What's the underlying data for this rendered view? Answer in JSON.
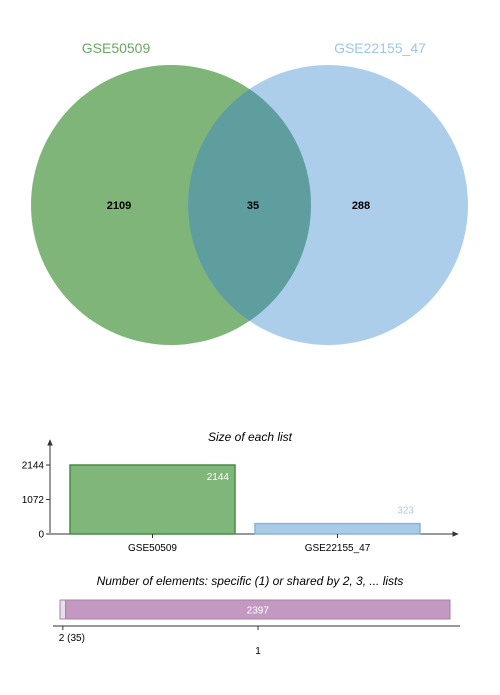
{
  "chart_data": [
    {
      "type": "venn",
      "sets": [
        {
          "name": "GSE50509",
          "color": "#6aa863"
        },
        {
          "name": "GSE22155_47",
          "color": "#9fc5e8"
        }
      ],
      "regions": {
        "only_GSE50509": "2109",
        "shared": "35",
        "only_GSE22155_47": "288"
      },
      "overlap_color": "#5f9e9f"
    },
    {
      "type": "bar",
      "title": "Size of each list",
      "categories": [
        "GSE50509",
        "GSE22155_47"
      ],
      "values": [
        2144,
        323
      ],
      "value_labels": [
        "2144",
        "323"
      ],
      "colors": [
        "#7fb67a",
        "#a8cbe8"
      ],
      "edge_colors": [
        "#4a8a45",
        "#8ab3d8"
      ],
      "label_colors": [
        "#ffffff",
        "#a8cbe8"
      ],
      "yticks": [
        "0",
        "1072",
        "2144"
      ],
      "ylim": [
        0,
        2144
      ]
    },
    {
      "type": "bar",
      "orientation": "horizontal-stacked",
      "title": "Number of elements: specific (1) or shared by 2, 3, ... lists",
      "segments": [
        {
          "label": "2 (35)",
          "value": 35,
          "color": "#e6e0ea"
        },
        {
          "label": "1",
          "value": 2397,
          "value_label": "2397",
          "color": "#c399c2"
        }
      ]
    }
  ]
}
